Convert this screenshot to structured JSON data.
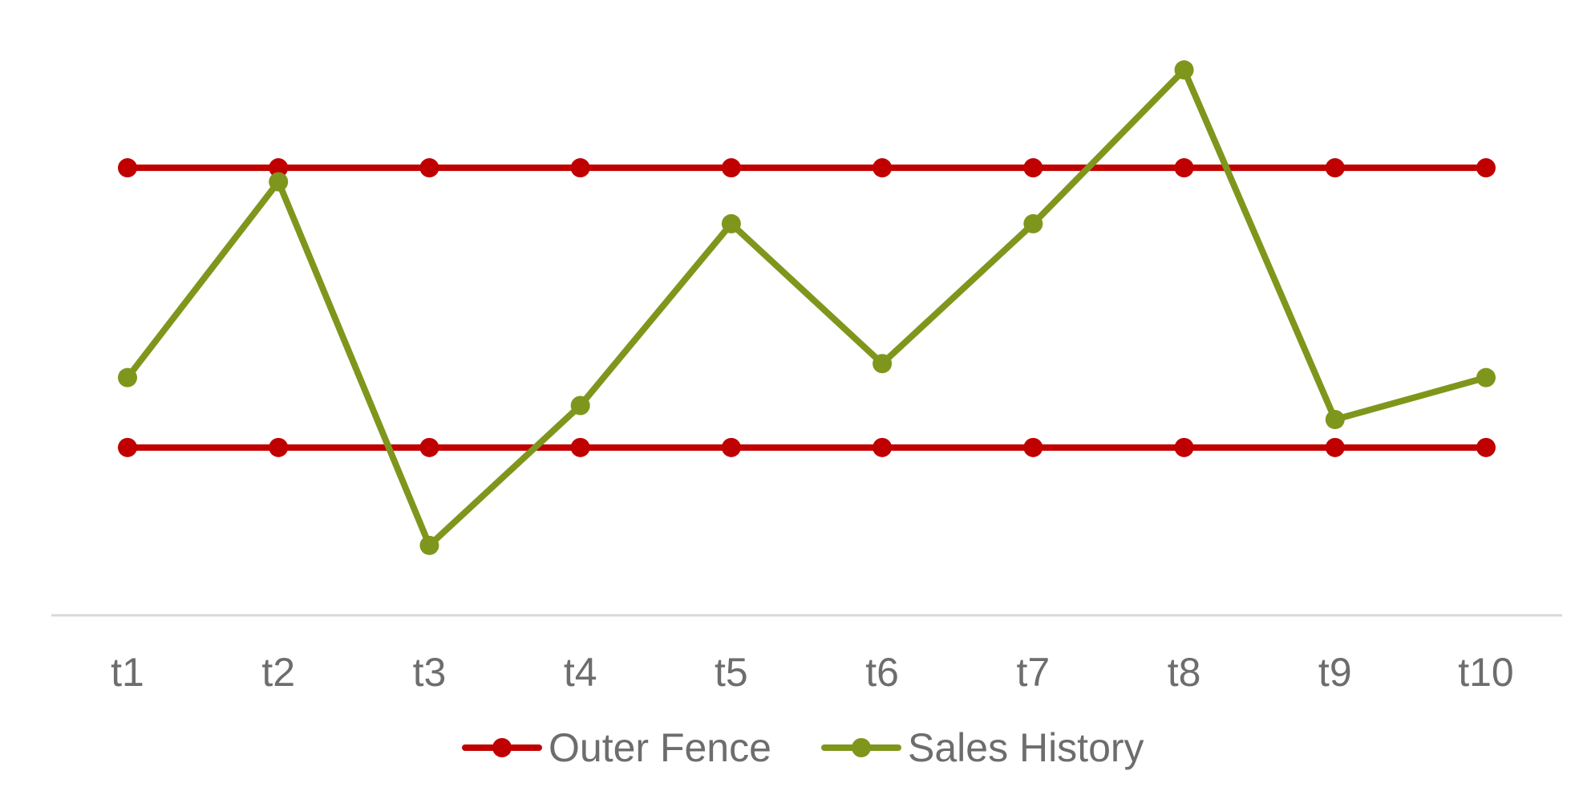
{
  "chart_data": {
    "type": "line",
    "categories": [
      "t1",
      "t2",
      "t3",
      "t4",
      "t5",
      "t6",
      "t7",
      "t8",
      "t9",
      "t10"
    ],
    "ylim": [
      0,
      11
    ],
    "grid": false,
    "legend_position": "bottom",
    "series": [
      {
        "name": "Outer Fence",
        "color": "#c00000",
        "values": [
          8,
          8,
          8,
          8,
          8,
          8,
          8,
          8,
          8,
          8
        ]
      },
      {
        "name": "Outer Fence",
        "color": "#c00000",
        "show_in_legend": false,
        "values": [
          3.0,
          3.0,
          3.0,
          3.0,
          3.0,
          3.0,
          3.0,
          3.0,
          3.0,
          3.0
        ]
      },
      {
        "name": "Sales History",
        "color": "#7f961c",
        "values": [
          4.25,
          7.75,
          1.25,
          3.75,
          7.0,
          4.5,
          7.0,
          9.75,
          3.5,
          4.25
        ]
      }
    ],
    "axis_color": "#d9d9d9"
  }
}
